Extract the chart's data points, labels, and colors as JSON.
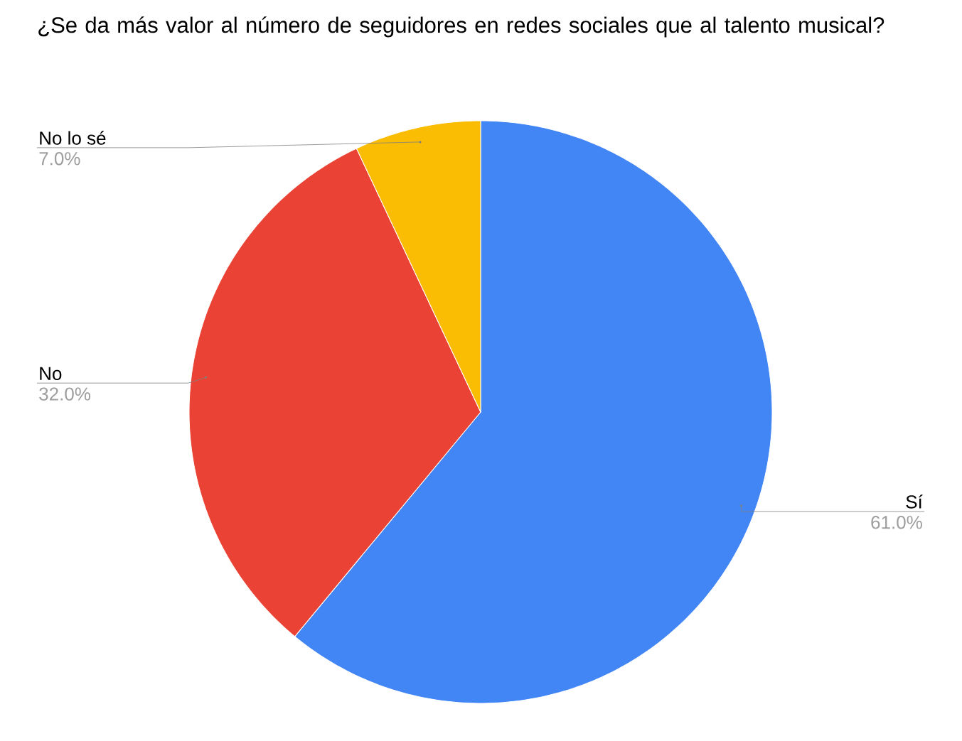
{
  "chart_data": {
    "type": "pie",
    "title": "¿Se da más valor al número de seguidores en redes sociales que al talento musical?",
    "categories": [
      "Sí",
      "No",
      "No lo sé"
    ],
    "values": [
      61,
      32,
      7
    ],
    "value_labels": [
      "61.0%",
      "32.0%",
      "7.0%"
    ],
    "colors": [
      "#4285f4",
      "#ea4335",
      "#fbbc04"
    ]
  }
}
